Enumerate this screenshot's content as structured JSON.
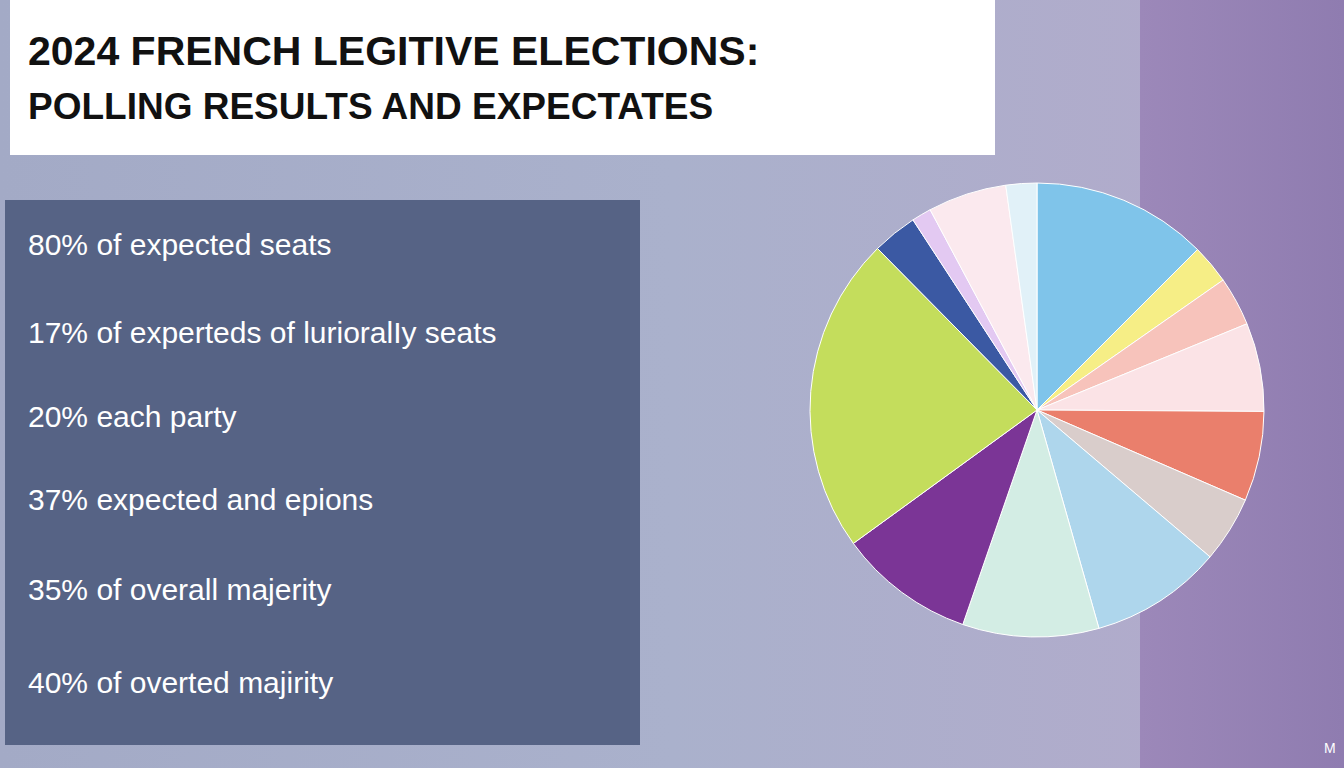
{
  "chart_data": {
    "type": "pie",
    "title": "2024 FRENCH LEGITIVE ELECTIONS:",
    "subtitle": "POLLING RESULTS AND EXPECTATES",
    "annotations": [
      "80% of expected seats",
      "17% of experteds of lurioralIy seats",
      "20% each party",
      "37% expected and epions",
      "35% of overall majerity",
      "40% of overted majirity"
    ],
    "footnote": "M",
    "values": [
      12.5,
      2.8,
      3.5,
      6.3,
      6.4,
      4.7,
      9.4,
      9.7,
      9.7,
      22.6,
      3.2,
      1.4,
      5.6,
      2.2
    ],
    "colors": [
      "#7fc4ea",
      "#f6ee86",
      "#f7c3bb",
      "#fbe3e6",
      "#ea7f6c",
      "#d9cdcb",
      "#aed6ec",
      "#d3ede4",
      "#7b3596",
      "#c4dd5c",
      "#3b59a3",
      "#e3c9f2",
      "#fbe9ee",
      "#e1f1f8"
    ]
  }
}
